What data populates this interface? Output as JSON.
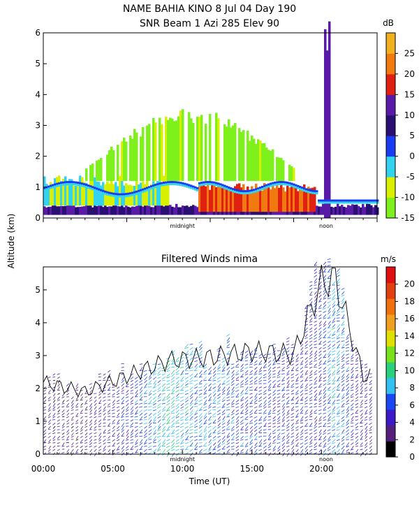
{
  "chart_data": [
    {
      "type": "heatmap",
      "title_line1": "NAME BAHIA KINO    8 Jul 04 Day 190",
      "title_line2": "SNR Beam 1 Azi 285 Elev 90",
      "ylabel": "Altitude (km)",
      "xlabel": "",
      "ylim": [
        0,
        6
      ],
      "y_ticks": [
        "0",
        "1",
        "2",
        "3",
        "4",
        "5",
        "6"
      ],
      "x_markers": [
        "midnight",
        "noon"
      ],
      "colorbar": {
        "unit": "dB",
        "ticks": [
          "25",
          "20",
          "15",
          "10",
          "5",
          "0",
          "-5",
          "-10",
          "-15"
        ],
        "range": [
          -15,
          30
        ],
        "colors": [
          "#7ef01c",
          "#d8f000",
          "#33d3f0",
          "#1a3cf0",
          "#2a0f73",
          "#5a1aa8",
          "#e02010",
          "#f07a10",
          "#f0b020"
        ]
      },
      "layers": [
        {
          "name": "surface",
          "x_range": [
            "00:00",
            "23:59"
          ],
          "alt_range": [
            0.1,
            0.4
          ],
          "snr_db": 10
        },
        {
          "name": "nighttime_boundary_layer",
          "x_range": [
            "00:00",
            "09:00"
          ],
          "alt_range": [
            0.4,
            1.2
          ],
          "snr_db": -5
        },
        {
          "name": "daytime_mixed_layer",
          "x_range": [
            "11:00",
            "19:30"
          ],
          "alt_range": [
            0.2,
            1.0
          ],
          "snr_db": 20
        },
        {
          "name": "upper_returns",
          "x_range": [
            "03:00",
            "18:00"
          ],
          "alt_range": [
            1.2,
            3.6
          ],
          "snr_db": -12
        },
        {
          "name": "rain_column",
          "x_range": [
            "20:10",
            "20:35"
          ],
          "alt_range": [
            0,
            6
          ],
          "snr_db": 10
        }
      ]
    },
    {
      "type": "heatmap",
      "title": "Filtered Winds nima",
      "xlabel": "Time (UT)",
      "ylabel": "Altitude (km)",
      "ylim": [
        0,
        5.7
      ],
      "y_ticks": [
        "0",
        "1",
        "2",
        "3",
        "4",
        "5"
      ],
      "x_ticks": [
        "00:00",
        "05:00",
        "10:00",
        "15:00",
        "20:00"
      ],
      "x_markers": [
        "midnight",
        "noon"
      ],
      "colorbar": {
        "unit": "m/s",
        "ticks": [
          "0",
          "2",
          "4",
          "6",
          "8",
          "10",
          "12",
          "14",
          "16",
          "18",
          "20"
        ],
        "range": [
          0,
          22
        ],
        "colors": [
          "#000000",
          "#55207a",
          "#3c1ac8",
          "#1a47f0",
          "#33c0f0",
          "#2ad07a",
          "#78e01c",
          "#e0e000",
          "#f0a020",
          "#f07010",
          "#e04010",
          "#e01010"
        ]
      },
      "wind_speed_profile": {
        "times_h": [
          0,
          3,
          6,
          9,
          12,
          15,
          18,
          20,
          21,
          23
        ],
        "typical_speed_ms": [
          3,
          3,
          5,
          9,
          7,
          6,
          5,
          5,
          8,
          4
        ],
        "max_alt_km": [
          2.3,
          2.0,
          2.5,
          3.0,
          3.1,
          3.3,
          3.2,
          5.5,
          5.6,
          2.5
        ]
      }
    }
  ]
}
